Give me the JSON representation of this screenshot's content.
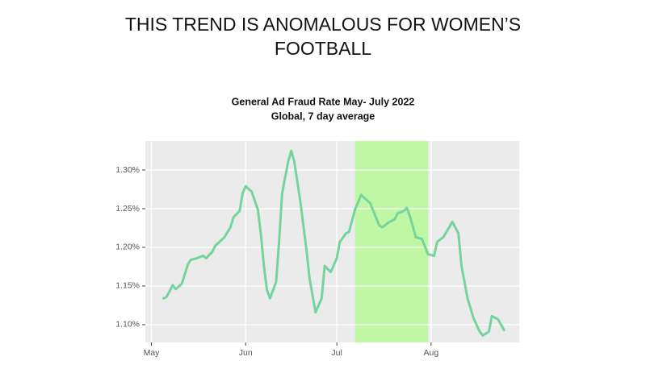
{
  "headline": [
    "THIS TREND IS ANOMALOUS FOR WOMEN’S",
    "FOOTBALL"
  ],
  "chart_data": {
    "type": "line",
    "title": "General Ad Fraud Rate May- July 2022",
    "subtitle": "Global, 7 day average",
    "x": [
      4,
      5,
      7,
      8,
      10,
      12,
      13,
      15,
      17,
      18,
      20,
      21,
      24,
      26,
      27,
      29,
      30,
      31,
      33,
      35,
      36,
      37,
      38,
      39,
      41,
      42,
      43,
      45,
      46,
      47,
      49,
      51,
      52,
      54,
      56,
      57,
      59,
      61,
      62,
      64,
      65,
      67,
      69,
      70,
      72,
      73,
      75,
      76,
      78,
      80,
      81,
      83,
      84,
      85,
      87,
      89,
      91,
      93,
      94,
      96,
      98,
      99,
      101,
      102,
      104,
      106,
      108,
      109,
      111,
      112,
      114,
      116
    ],
    "series": [
      {
        "color": "#74d49c",
        "values": [
          1.134,
          1.136,
          1.151,
          1.146,
          1.153,
          1.178,
          1.184,
          1.186,
          1.189,
          1.186,
          1.194,
          1.202,
          1.213,
          1.226,
          1.239,
          1.247,
          1.27,
          1.279,
          1.272,
          1.249,
          1.218,
          1.176,
          1.145,
          1.134,
          1.155,
          1.207,
          1.27,
          1.311,
          1.325,
          1.311,
          1.259,
          1.197,
          1.16,
          1.116,
          1.134,
          1.176,
          1.168,
          1.186,
          1.207,
          1.218,
          1.22,
          1.249,
          1.268,
          1.264,
          1.257,
          1.247,
          1.228,
          1.226,
          1.232,
          1.236,
          1.244,
          1.247,
          1.251,
          1.241,
          1.213,
          1.211,
          1.191,
          1.189,
          1.207,
          1.213,
          1.226,
          1.233,
          1.218,
          1.176,
          1.134,
          1.108,
          1.091,
          1.086,
          1.091,
          1.111,
          1.107,
          1.093
        ]
      }
    ],
    "xlim": [
      -2,
      121
    ],
    "xticks": [
      {
        "value": 0,
        "label": "May"
      },
      {
        "value": 31,
        "label": "Jun"
      },
      {
        "value": 61,
        "label": "Jul"
      },
      {
        "value": 92,
        "label": "Aug"
      }
    ],
    "ylim": [
      1.077,
      1.3375
    ],
    "yticks": [
      {
        "value": 1.1,
        "label": "1.10%"
      },
      {
        "value": 1.15,
        "label": "1.15%"
      },
      {
        "value": 1.2,
        "label": "1.20%"
      },
      {
        "value": 1.25,
        "label": "1.25%"
      },
      {
        "value": 1.3,
        "label": "1.30%"
      }
    ],
    "highlight": {
      "from": 67,
      "to": 91,
      "color": "#bff7a4"
    },
    "grid": true
  }
}
